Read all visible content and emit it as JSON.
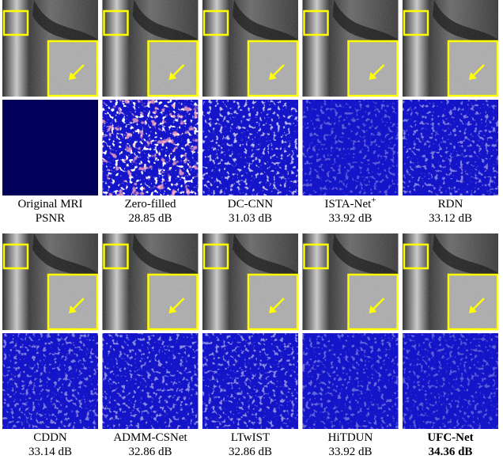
{
  "rows": [
    {
      "items": [
        {
          "method": "Original MRI",
          "metric": "PSNR"
        },
        {
          "method": "Zero-filled",
          "metric": "28.85 dB"
        },
        {
          "method": "DC-CNN",
          "metric": "31.03 dB"
        },
        {
          "method": "ISTA-Net",
          "method_sup": "+",
          "metric": "33.92 dB"
        },
        {
          "method": "RDN",
          "metric": "33.12 dB"
        }
      ]
    },
    {
      "items": [
        {
          "method": "CDDN",
          "metric": "33.14 dB"
        },
        {
          "method": "ADMM-CSNet",
          "metric": "32.86 dB"
        },
        {
          "method": "LTwIST",
          "metric": "32.86 dB"
        },
        {
          "method": "HiTDUN",
          "metric": "33.92 dB"
        },
        {
          "method": "UFC-Net",
          "metric": "34.36 dB"
        }
      ]
    }
  ]
}
